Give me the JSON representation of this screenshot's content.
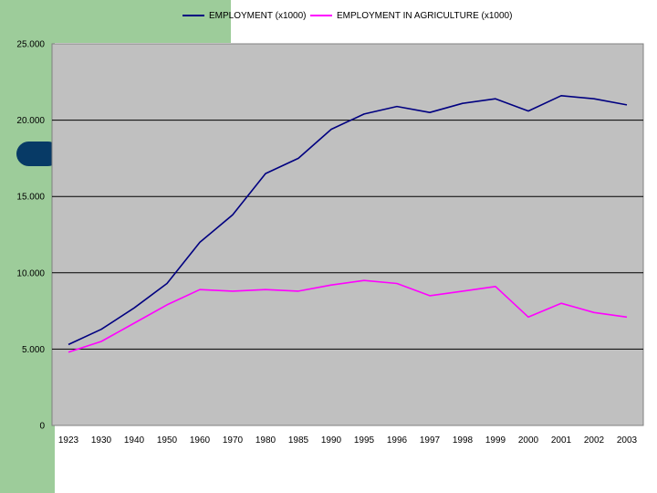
{
  "chart_data": {
    "type": "line",
    "categories": [
      "1923",
      "1930",
      "1940",
      "1950",
      "1960",
      "1970",
      "1980",
      "1985",
      "1990",
      "1995",
      "1996",
      "1997",
      "1998",
      "1999",
      "2000",
      "2001",
      "2002",
      "2003"
    ],
    "series": [
      {
        "name": "EMPLOYMENT (x1000)",
        "color": "#000080",
        "values": [
          5300,
          6300,
          7700,
          9300,
          12000,
          13800,
          16500,
          17500,
          19400,
          20400,
          20900,
          20500,
          21100,
          21400,
          20600,
          21600,
          21400,
          21000
        ]
      },
      {
        "name": "EMPLOYMENT IN AGRICULTURE (x1000)",
        "color": "#ff00ff",
        "values": [
          4800,
          5500,
          6700,
          7900,
          8900,
          8800,
          8900,
          8800,
          9200,
          9500,
          9300,
          8500,
          8800,
          9100,
          7100,
          8000,
          7400,
          7100
        ]
      }
    ],
    "y_ticks": [
      "0",
      "5.000",
      "10.000",
      "15.000",
      "20.000",
      "25.000"
    ],
    "ylim": [
      0,
      25000
    ],
    "grid": true,
    "legend_position": "top",
    "plot_background": "#c0c0c0"
  }
}
